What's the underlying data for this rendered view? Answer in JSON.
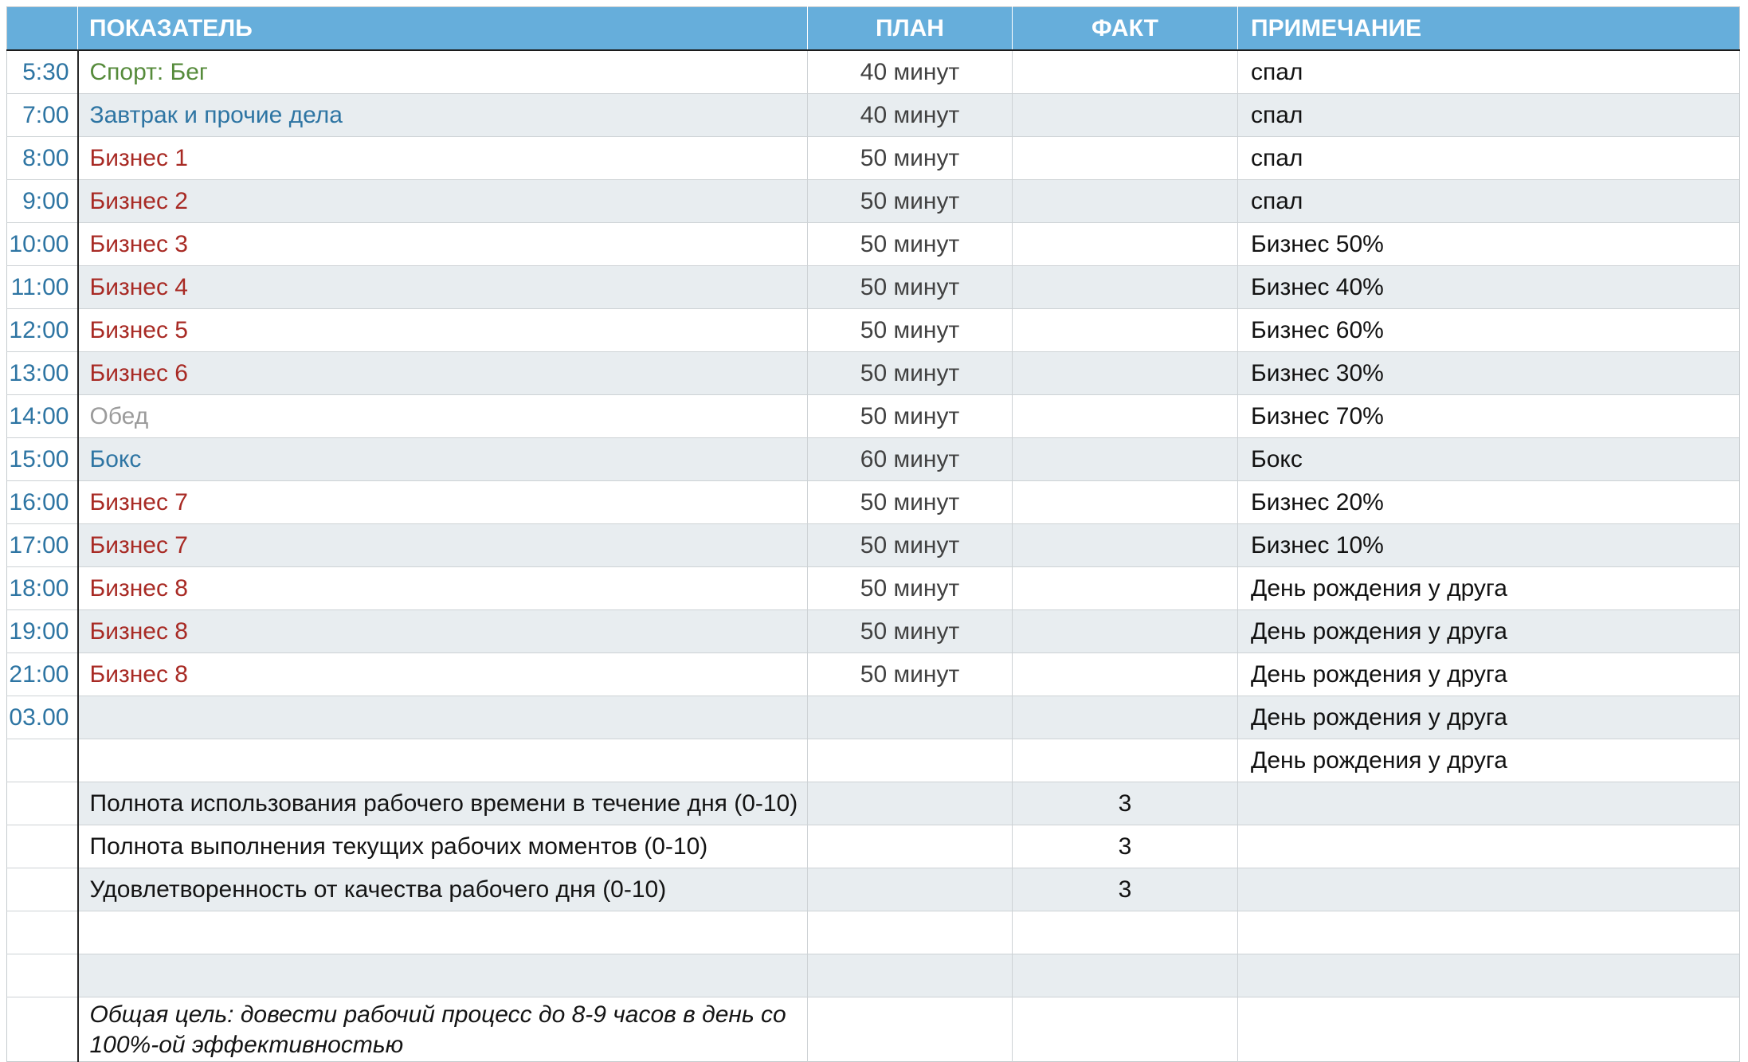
{
  "colors": {
    "header-bg": "#66aedb",
    "row-alt": "#e8edf0",
    "time-blue": "#2e75a3",
    "item-blue": "#2e75a3",
    "green": "#568b3b",
    "red": "#a82a24",
    "muted": "#9b9b9b"
  },
  "table": {
    "columns": {
      "time": "",
      "indicator": "ПОКАЗАТЕЛЬ",
      "plan": "ПЛАН",
      "fact": "ФАКТ",
      "note": "ПРИМЕЧАНИЕ"
    },
    "rows": [
      {
        "time": "5:30",
        "indicator": "Спорт: Бег",
        "style": "green",
        "plan": "40 минут",
        "fact": "",
        "note": "спал",
        "shaded": false
      },
      {
        "time": "7:00",
        "indicator": "Завтрак и прочие дела",
        "style": "blue",
        "plan": "40 минут",
        "fact": "",
        "note": "спал",
        "shaded": true
      },
      {
        "time": "8:00",
        "indicator": "Бизнес 1",
        "style": "red",
        "plan": "50 минут",
        "fact": "",
        "note": "спал",
        "shaded": false
      },
      {
        "time": "9:00",
        "indicator": "Бизнес 2",
        "style": "red",
        "plan": "50 минут",
        "fact": "",
        "note": "спал",
        "shaded": true
      },
      {
        "time": "10:00",
        "indicator": "Бизнес 3",
        "style": "red",
        "plan": "50 минут",
        "fact": "",
        "note": "Бизнес 50%",
        "shaded": false
      },
      {
        "time": "11:00",
        "indicator": "Бизнес 4",
        "style": "red",
        "plan": "50 минут",
        "fact": "",
        "note": "Бизнес 40%",
        "shaded": true
      },
      {
        "time": "12:00",
        "indicator": "Бизнес 5",
        "style": "red",
        "plan": "50 минут",
        "fact": "",
        "note": "Бизнес 60%",
        "shaded": false
      },
      {
        "time": "13:00",
        "indicator": "Бизнес 6",
        "style": "red",
        "plan": "50 минут",
        "fact": "",
        "note": "Бизнес 30%",
        "shaded": true
      },
      {
        "time": "14:00",
        "indicator": "Обед",
        "style": "gray",
        "plan": "50 минут",
        "fact": "",
        "note": "Бизнес 70%",
        "shaded": false
      },
      {
        "time": "15:00",
        "indicator": "Бокс",
        "style": "blue",
        "plan": "60 минут",
        "fact": "",
        "note": "Бокс",
        "shaded": true
      },
      {
        "time": "16:00",
        "indicator": "Бизнес 7",
        "style": "red",
        "plan": "50 минут",
        "fact": "",
        "note": "Бизнес 20%",
        "shaded": false
      },
      {
        "time": "17:00",
        "indicator": "Бизнес 7",
        "style": "red",
        "plan": "50 минут",
        "fact": "",
        "note": "Бизнес 10%",
        "shaded": true
      },
      {
        "time": "18:00",
        "indicator": "Бизнес 8",
        "style": "red",
        "plan": "50 минут",
        "fact": "",
        "note": "День рождения у друга",
        "shaded": false
      },
      {
        "time": "19:00",
        "indicator": "Бизнес 8",
        "style": "red",
        "plan": "50 минут",
        "fact": "",
        "note": "День рождения у друга",
        "shaded": true
      },
      {
        "time": "21:00",
        "indicator": "Бизнес 8",
        "style": "red",
        "plan": "50 минут",
        "fact": "",
        "note": "День рождения у друга",
        "shaded": false
      },
      {
        "time": "03.00",
        "indicator": "",
        "style": "black",
        "plan": "",
        "fact": "",
        "note": "День рождения у друга",
        "shaded": true
      },
      {
        "time": "",
        "indicator": "",
        "style": "black",
        "plan": "",
        "fact": "",
        "note": "День рождения у друга",
        "shaded": false
      },
      {
        "time": "",
        "indicator": "Полнота использования рабочего времени в течение дня (0-10)",
        "style": "black",
        "plan": "",
        "fact": "3",
        "note": "",
        "shaded": true
      },
      {
        "time": "",
        "indicator": "Полнота выполнения текущих рабочих моментов (0-10)",
        "style": "black",
        "plan": "",
        "fact": "3",
        "note": "",
        "shaded": false
      },
      {
        "time": "",
        "indicator": "Удовлетворенность от качества рабочего дня (0-10)",
        "style": "black",
        "plan": "",
        "fact": "3",
        "note": "",
        "shaded": true
      },
      {
        "time": "",
        "indicator": "",
        "style": "black",
        "plan": "",
        "fact": "",
        "note": "",
        "shaded": false
      },
      {
        "time": "",
        "indicator": "",
        "style": "black",
        "plan": "",
        "fact": "",
        "note": "",
        "shaded": true
      },
      {
        "time": "",
        "indicator": "Общая цель: довести рабочий процесс до 8-9 часов в день со 100%-ой эффективностью",
        "style": "black",
        "plan": "",
        "fact": "",
        "note": "",
        "shaded": false,
        "goal": true
      }
    ]
  }
}
